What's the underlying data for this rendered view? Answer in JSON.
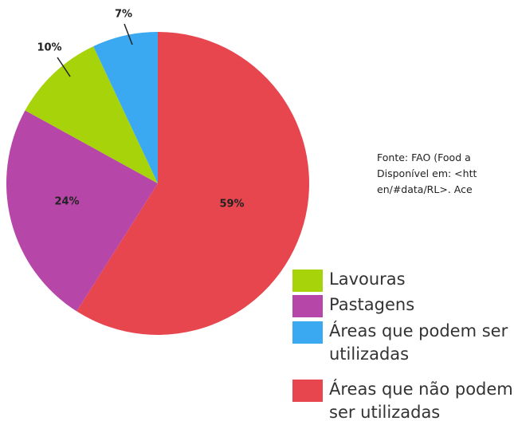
{
  "chart_data": {
    "type": "pie",
    "categories": [
      "Áreas que não podem ser utilizadas",
      "Pastagens",
      "Lavouras",
      "Áreas que podem ser utilizadas"
    ],
    "values": [
      59,
      24,
      10,
      7
    ],
    "value_labels": [
      "59%",
      "24%",
      "10%",
      "7%"
    ],
    "colors": [
      "#e8464f",
      "#b646a8",
      "#a6d30a",
      "#3aa9f2"
    ],
    "annotations": [
      "Fonte: FAO (Food a",
      "Disponível em: <htt",
      "en/#data/RL>. Ace"
    ]
  }
}
